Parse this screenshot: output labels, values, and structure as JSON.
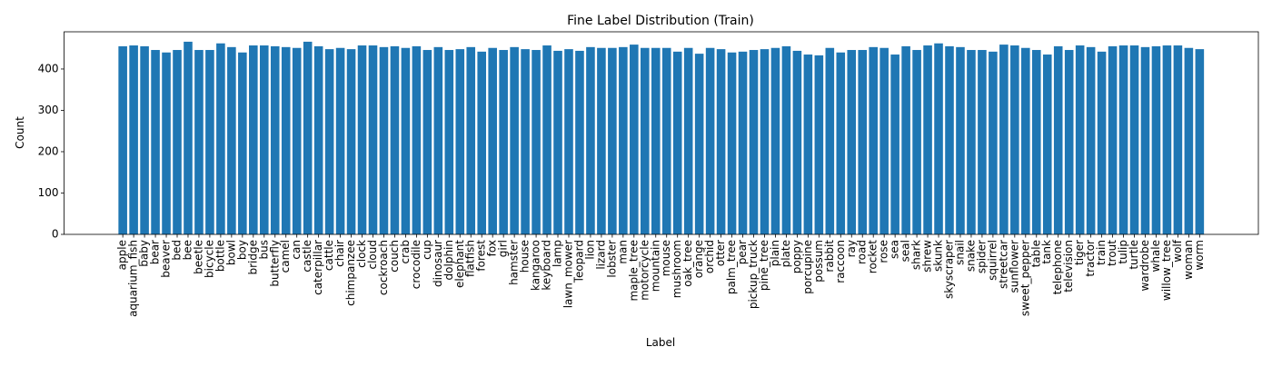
{
  "chart_data": {
    "type": "bar",
    "title": "Fine Label Distribution (Train)",
    "x_label": "Label",
    "y_label": "Count",
    "color": "#1f77b4",
    "categories": [
      "apple",
      "aquarium_fish",
      "baby",
      "bear",
      "beaver",
      "bed",
      "bee",
      "beetle",
      "bicycle",
      "bottle",
      "bowl",
      "boy",
      "bridge",
      "bus",
      "butterfly",
      "camel",
      "can",
      "castle",
      "caterpillar",
      "cattle",
      "chair",
      "chimpanzee",
      "clock",
      "cloud",
      "cockroach",
      "couch",
      "crab",
      "crocodile",
      "cup",
      "dinosaur",
      "dolphin",
      "elephant",
      "flatfish",
      "forest",
      "fox",
      "girl",
      "hamster",
      "house",
      "kangaroo",
      "keyboard",
      "lamp",
      "lawn_mower",
      "leopard",
      "lion",
      "lizard",
      "lobster",
      "man",
      "maple_tree",
      "motorcycle",
      "mountain",
      "mouse",
      "mushroom",
      "oak_tree",
      "orange",
      "orchid",
      "otter",
      "palm_tree",
      "pear",
      "pickup_truck",
      "pine_tree",
      "plain",
      "plate",
      "poppy",
      "porcupine",
      "possum",
      "rabbit",
      "raccoon",
      "ray",
      "road",
      "rocket",
      "rose",
      "sea",
      "seal",
      "shark",
      "shrew",
      "skunk",
      "skyscraper",
      "snail",
      "snake",
      "spider",
      "squirrel",
      "streetcar",
      "sunflower",
      "sweet_pepper",
      "table",
      "tank",
      "telephone",
      "television",
      "tiger",
      "tractor",
      "train",
      "trout",
      "tulip",
      "turtle",
      "wardrobe",
      "whale",
      "willow_tree",
      "wolf",
      "woman",
      "worm"
    ],
    "values": [
      455,
      457,
      455,
      446,
      440,
      446,
      466,
      446,
      446,
      462,
      453,
      440,
      457,
      457,
      455,
      453,
      451,
      466,
      455,
      448,
      451,
      448,
      457,
      457,
      453,
      455,
      451,
      455,
      446,
      453,
      446,
      448,
      453,
      442,
      451,
      446,
      453,
      448,
      446,
      457,
      444,
      448,
      444,
      453,
      451,
      451,
      453,
      459,
      451,
      451,
      451,
      442,
      451,
      437,
      451,
      448,
      440,
      442,
      446,
      448,
      451,
      455,
      444,
      435,
      433,
      451,
      440,
      446,
      446,
      453,
      451,
      435,
      455,
      446,
      457,
      462,
      455,
      453,
      446,
      446,
      442,
      459,
      457,
      451,
      446,
      435,
      455,
      446,
      457,
      453,
      442,
      455,
      457,
      457,
      453,
      455,
      457,
      457,
      451,
      448
    ],
    "ylim": [
      0,
      490
    ],
    "yticks": [
      0,
      100,
      200,
      300,
      400
    ]
  }
}
